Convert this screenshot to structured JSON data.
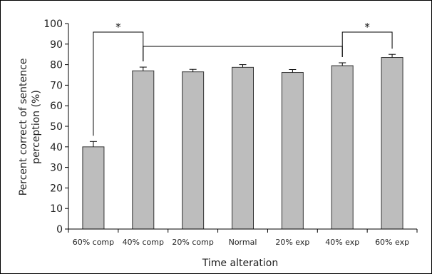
{
  "chart_data": {
    "type": "bar",
    "categories": [
      "60% comp",
      "40% comp",
      "20% comp",
      "Normal",
      "20% exp",
      "40% exp",
      "60% exp"
    ],
    "values": [
      40,
      77,
      76.5,
      78.7,
      76.2,
      79.5,
      83.5
    ],
    "errors": [
      2.6,
      1.8,
      1.2,
      1.3,
      1.4,
      1.4,
      1.5
    ],
    "xlabel": "Time alteration",
    "ylabel_lines": [
      "Percent correct of sentence",
      "perception (%)"
    ],
    "ylim": [
      0,
      100
    ],
    "yticks": [
      0,
      10,
      20,
      30,
      40,
      50,
      60,
      70,
      80,
      90,
      100
    ],
    "grid": false,
    "bar_color": "#bdbdbd",
    "significance": [
      {
        "from": 0,
        "to": 1,
        "label": "*"
      },
      {
        "from": 5,
        "to": 6,
        "label": "*"
      }
    ],
    "bracket_span": {
      "from": 1,
      "to": 5
    }
  }
}
